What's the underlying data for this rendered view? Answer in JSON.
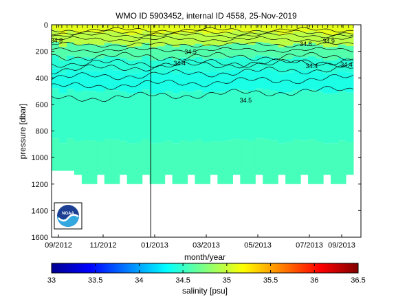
{
  "chart_data": {
    "type": "contour",
    "title": "WMO ID 5903452, internal ID 4558, 25-Nov-2019",
    "xlabel": "month/year",
    "ylabel": "pressure [dbar]",
    "x_ticks": [
      "09/2012",
      "11/2012",
      "01/2013",
      "03/2013",
      "05/2013",
      "07/2013",
      "09/2013"
    ],
    "x_range": [
      "2012-09-01",
      "2013-09-01"
    ],
    "y_ticks": [
      0,
      200,
      400,
      600,
      800,
      1000,
      1200,
      1400,
      1600
    ],
    "ylim": [
      1600,
      0
    ],
    "colorbar": {
      "label": "salinity [psu]",
      "ticks": [
        "33",
        "33.5",
        "34",
        "34.5",
        "35",
        "35.5",
        "36",
        "36.5"
      ],
      "range": [
        33,
        36.5
      ],
      "colors": [
        "#00008f",
        "#0000ff",
        "#0080ff",
        "#00ffff",
        "#80ff80",
        "#ffff00",
        "#ff8000",
        "#ff0000",
        "#800000"
      ]
    },
    "data_range": {
      "x": [
        "2012-09-01",
        "2013-08-23"
      ],
      "max_pressure": [
        1100,
        1200
      ]
    },
    "vertical_marker": "2012-12-27",
    "contour_labels": [
      {
        "text": "34.5",
        "x": "2013-04-18",
        "y": 570
      },
      {
        "text": "34.4",
        "x": "2013-08-15",
        "y": 300
      },
      {
        "text": "34.4",
        "x": "2013-07-05",
        "y": 310
      },
      {
        "text": "34.4",
        "x": "2013-01-30",
        "y": 290
      },
      {
        "text": "34.5",
        "x": "2013-02-12",
        "y": 205
      },
      {
        "text": "34.9",
        "x": "2013-07-25",
        "y": 125
      },
      {
        "text": "34.8",
        "x": "2013-06-28",
        "y": 145
      },
      {
        "text": "34.8",
        "x": "2012-09-07",
        "y": 120
      }
    ],
    "salinity_bands": [
      {
        "pressure": 20,
        "value": 35.1
      },
      {
        "pressure": 100,
        "value": 34.95
      },
      {
        "pressure": 200,
        "value": 34.6
      },
      {
        "pressure": 300,
        "value": 34.45
      },
      {
        "pressure": 400,
        "value": 34.4
      },
      {
        "pressure": 600,
        "value": 34.5
      },
      {
        "pressure": 1150,
        "value": 34.55
      }
    ],
    "logo": {
      "name": "noaa-logo-icon",
      "text": "NOAA"
    }
  }
}
